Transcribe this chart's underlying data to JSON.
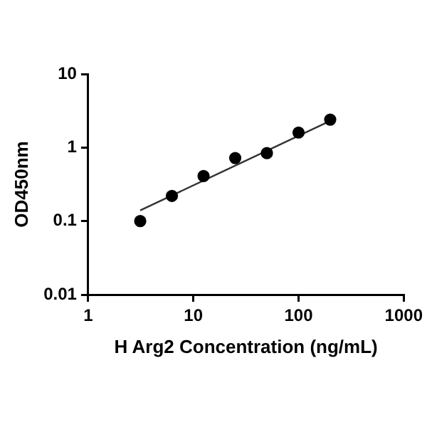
{
  "chart_data": {
    "type": "scatter",
    "xlabel": "H Arg2 Concentration (ng/mL)",
    "ylabel": "OD450nm",
    "log": "xy",
    "grid": false,
    "legend": false,
    "xlim": [
      1,
      1000
    ],
    "xticks": [
      1,
      10,
      100,
      1000
    ],
    "ylim": [
      0.01,
      10
    ],
    "yticks": [
      0.01,
      0.1,
      1,
      10
    ],
    "series": [
      {
        "type": "scatter",
        "marker": "circle",
        "color": "#000000",
        "x": [
          3.125,
          6.25,
          12.5,
          25,
          50,
          100,
          200
        ],
        "values": [
          0.1,
          0.22,
          0.41,
          0.72,
          0.84,
          1.6,
          2.4
        ]
      },
      {
        "type": "line",
        "marker": "none",
        "color": "#333333",
        "x": [
          3.125,
          200
        ],
        "values": [
          0.14,
          2.3
        ]
      }
    ]
  }
}
